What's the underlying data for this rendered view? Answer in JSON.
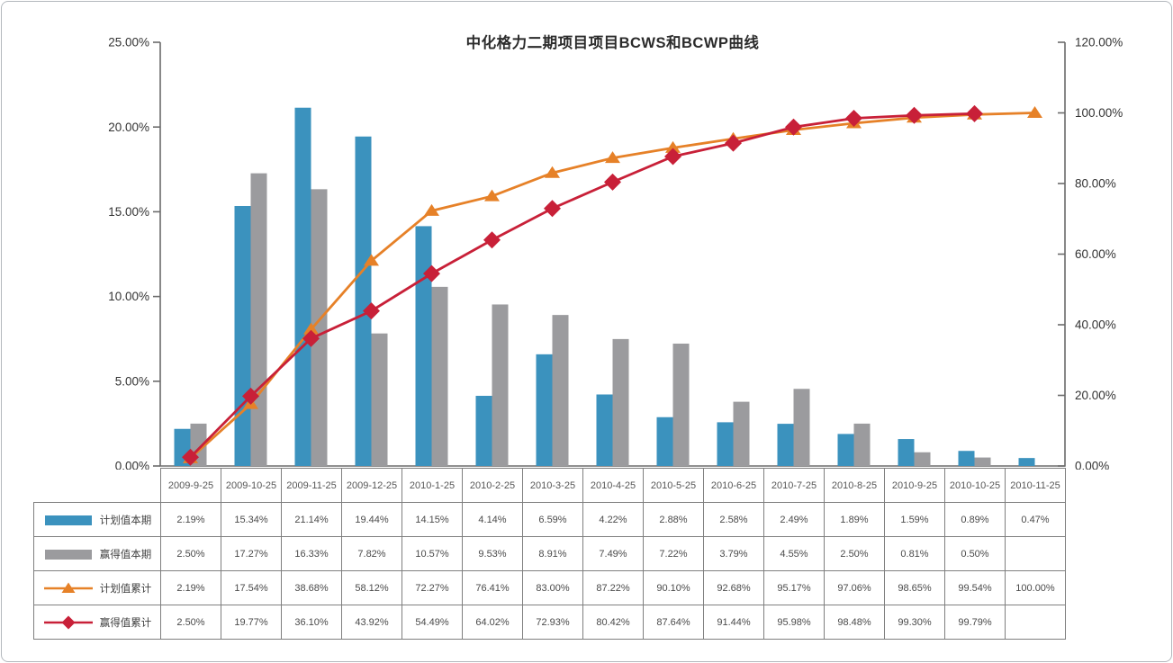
{
  "chart_data": {
    "type": "combo-bar-line",
    "title": "中化格力二期项目项目BCWS和BCWP曲线",
    "grid": false,
    "legend_position": "table-left-column",
    "categories": [
      "2009-9-25",
      "2009-10-25",
      "2009-11-25",
      "2009-12-25",
      "2010-1-25",
      "2010-2-25",
      "2010-3-25",
      "2010-4-25",
      "2010-5-25",
      "2010-6-25",
      "2010-7-25",
      "2010-8-25",
      "2010-9-25",
      "2010-10-25",
      "2010-11-25"
    ],
    "left_axis": {
      "min": 0,
      "max": 25,
      "ticks": [
        "0.00%",
        "5.00%",
        "10.00%",
        "15.00%",
        "20.00%",
        "25.00%"
      ]
    },
    "right_axis": {
      "min": 0,
      "max": 120,
      "ticks": [
        "0.00%",
        "20.00%",
        "40.00%",
        "60.00%",
        "80.00%",
        "100.00%",
        "120.00%"
      ]
    },
    "series": [
      {
        "key": "planned-current",
        "name": "计划值本期",
        "type": "bar",
        "axis": "left",
        "color": "#3B92BE",
        "values": [
          2.19,
          15.34,
          21.14,
          19.44,
          14.15,
          4.14,
          6.59,
          4.22,
          2.88,
          2.58,
          2.49,
          1.89,
          1.59,
          0.89,
          0.47
        ],
        "labels": [
          "2.19%",
          "15.34%",
          "21.14%",
          "19.44%",
          "14.15%",
          "4.14%",
          "6.59%",
          "4.22%",
          "2.88%",
          "2.58%",
          "2.49%",
          "1.89%",
          "1.59%",
          "0.89%",
          "0.47%"
        ]
      },
      {
        "key": "earned-current",
        "name": "赢得值本期",
        "type": "bar",
        "axis": "left",
        "color": "#9B9B9E",
        "values": [
          2.5,
          17.27,
          16.33,
          7.82,
          10.57,
          9.53,
          8.91,
          7.49,
          7.22,
          3.79,
          4.55,
          2.5,
          0.81,
          0.5,
          null
        ],
        "labels": [
          "2.50%",
          "17.27%",
          "16.33%",
          "7.82%",
          "10.57%",
          "9.53%",
          "8.91%",
          "7.49%",
          "7.22%",
          "3.79%",
          "4.55%",
          "2.50%",
          "0.81%",
          "0.50%",
          ""
        ]
      },
      {
        "key": "planned-cumulative",
        "name": "计划值累计",
        "type": "line",
        "marker": "triangle",
        "axis": "right",
        "color": "#E68128",
        "values": [
          2.19,
          17.54,
          38.68,
          58.12,
          72.27,
          76.41,
          83.0,
          87.22,
          90.1,
          92.68,
          95.17,
          97.06,
          98.65,
          99.54,
          100.0
        ],
        "labels": [
          "2.19%",
          "17.54%",
          "38.68%",
          "58.12%",
          "72.27%",
          "76.41%",
          "83.00%",
          "87.22%",
          "90.10%",
          "92.68%",
          "95.17%",
          "97.06%",
          "98.65%",
          "99.54%",
          "100.00%"
        ]
      },
      {
        "key": "earned-cumulative",
        "name": "赢得值累计",
        "type": "line",
        "marker": "diamond",
        "axis": "right",
        "color": "#C82038",
        "values": [
          2.5,
          19.77,
          36.1,
          43.92,
          54.49,
          64.02,
          72.93,
          80.42,
          87.64,
          91.44,
          95.98,
          98.48,
          99.3,
          99.79,
          null
        ],
        "labels": [
          "2.50%",
          "19.77%",
          "36.10%",
          "43.92%",
          "54.49%",
          "64.02%",
          "72.93%",
          "80.42%",
          "87.64%",
          "91.44%",
          "95.98%",
          "98.48%",
          "99.30%",
          "99.79%",
          ""
        ]
      }
    ]
  }
}
